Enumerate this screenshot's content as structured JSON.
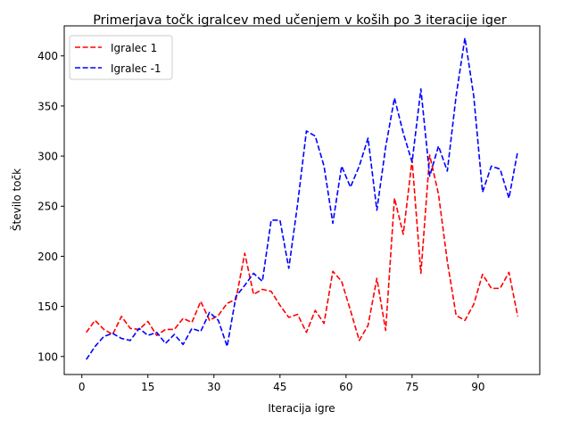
{
  "chart_data": {
    "type": "line",
    "title": "Primerjava točk igralcev med učenjem v koših po 3 iteracije iger",
    "xlabel": "Iteracija igre",
    "ylabel": "Število točk",
    "xlim": [
      -4,
      104
    ],
    "ylim": [
      82,
      430
    ],
    "xticks": [
      0,
      15,
      30,
      45,
      60,
      75,
      90
    ],
    "xtick_labels": [
      "0",
      "15",
      "30",
      "45",
      "60",
      "75",
      "90"
    ],
    "yticks": [
      100,
      150,
      200,
      250,
      300,
      350,
      400
    ],
    "ytick_labels": [
      "100",
      "150",
      "200",
      "250",
      "300",
      "350",
      "400"
    ],
    "legend_position": "top-left",
    "grid": false,
    "x": [
      1,
      3,
      5,
      7,
      9,
      11,
      13,
      15,
      17,
      19,
      21,
      23,
      25,
      27,
      29,
      31,
      33,
      35,
      37,
      39,
      41,
      43,
      45,
      47,
      49,
      51,
      53,
      55,
      57,
      59,
      61,
      63,
      65,
      67,
      69,
      71,
      73,
      75,
      77,
      79,
      81,
      83,
      85,
      87,
      89,
      91,
      93,
      95,
      97,
      99
    ],
    "series": [
      {
        "name": "Igralec 1",
        "color": "#ff0000",
        "style": "dashed",
        "values": [
          124,
          136,
          127,
          122,
          140,
          128,
          127,
          135,
          121,
          127,
          127,
          138,
          134,
          155,
          136,
          141,
          153,
          157,
          203,
          162,
          167,
          165,
          151,
          139,
          142,
          124,
          146,
          133,
          185,
          175,
          146,
          116,
          131,
          178,
          126,
          258,
          222,
          296,
          183,
          301,
          262,
          195,
          141,
          136,
          152,
          182,
          168,
          168,
          184,
          140
        ]
      },
      {
        "name": "Igralec -1",
        "color": "#0000ff",
        "style": "dashed",
        "values": [
          97,
          110,
          120,
          123,
          118,
          116,
          128,
          121,
          124,
          113,
          122,
          112,
          128,
          125,
          144,
          136,
          110,
          160,
          171,
          183,
          175,
          236,
          236,
          188,
          252,
          325,
          320,
          290,
          233,
          290,
          269,
          290,
          318,
          246,
          309,
          358,
          323,
          294,
          367,
          280,
          310,
          285,
          360,
          418,
          360,
          264,
          290,
          287,
          258,
          305
        ]
      }
    ]
  }
}
